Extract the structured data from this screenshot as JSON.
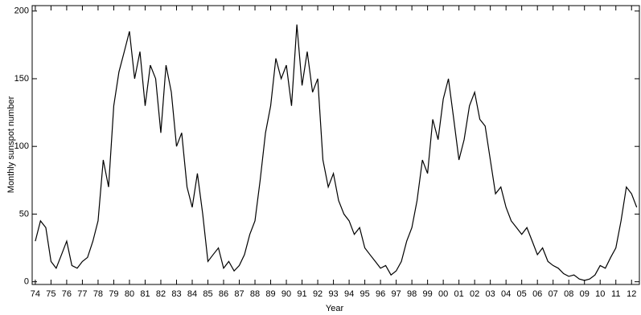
{
  "chart_data": {
    "type": "line",
    "x_label": "Year",
    "y_label": "Monthly sunspot number",
    "x": [
      1974.0,
      1974.33,
      1974.67,
      1975.0,
      1975.33,
      1975.67,
      1976.0,
      1976.33,
      1976.67,
      1977.0,
      1977.33,
      1977.67,
      1978.0,
      1978.33,
      1978.67,
      1979.0,
      1979.33,
      1979.67,
      1980.0,
      1980.33,
      1980.67,
      1981.0,
      1981.33,
      1981.67,
      1982.0,
      1982.33,
      1982.67,
      1983.0,
      1983.33,
      1983.67,
      1984.0,
      1984.33,
      1984.67,
      1985.0,
      1985.33,
      1985.67,
      1986.0,
      1986.33,
      1986.67,
      1987.0,
      1987.33,
      1987.67,
      1988.0,
      1988.33,
      1988.67,
      1989.0,
      1989.33,
      1989.67,
      1990.0,
      1990.33,
      1990.67,
      1991.0,
      1991.33,
      1991.67,
      1992.0,
      1992.33,
      1992.67,
      1993.0,
      1993.33,
      1993.67,
      1994.0,
      1994.33,
      1994.67,
      1995.0,
      1995.33,
      1995.67,
      1996.0,
      1996.33,
      1996.67,
      1997.0,
      1997.33,
      1997.67,
      1998.0,
      1998.33,
      1998.67,
      1999.0,
      1999.33,
      1999.67,
      2000.0,
      2000.33,
      2000.67,
      2001.0,
      2001.33,
      2001.67,
      2002.0,
      2002.33,
      2002.67,
      2003.0,
      2003.33,
      2003.67,
      2004.0,
      2004.33,
      2004.67,
      2005.0,
      2005.33,
      2005.67,
      2006.0,
      2006.33,
      2006.67,
      2007.0,
      2007.33,
      2007.67,
      2008.0,
      2008.33,
      2008.67,
      2009.0,
      2009.33,
      2009.67,
      2010.0,
      2010.33,
      2010.67,
      2011.0,
      2011.33,
      2011.67,
      2012.0,
      2012.33
    ],
    "series": [
      {
        "color": "#000000",
        "values": [
          30,
          45,
          40,
          15,
          10,
          20,
          30,
          12,
          10,
          15,
          18,
          30,
          45,
          90,
          70,
          130,
          155,
          170,
          185,
          150,
          170,
          130,
          160,
          150,
          110,
          160,
          140,
          100,
          110,
          70,
          55,
          80,
          50,
          15,
          20,
          25,
          10,
          15,
          8,
          12,
          20,
          35,
          45,
          75,
          110,
          130,
          165,
          150,
          160,
          130,
          190,
          145,
          170,
          140,
          150,
          90,
          70,
          80,
          60,
          50,
          45,
          35,
          40,
          25,
          20,
          15,
          10,
          12,
          5,
          8,
          15,
          30,
          40,
          60,
          90,
          80,
          120,
          105,
          135,
          150,
          120,
          90,
          105,
          130,
          140,
          120,
          115,
          90,
          65,
          70,
          55,
          45,
          40,
          35,
          40,
          30,
          20,
          25,
          15,
          12,
          10,
          6,
          4,
          5,
          2,
          1,
          2,
          5,
          12,
          10,
          18,
          25,
          45,
          70,
          65,
          55
        ]
      }
    ],
    "xlim": [
      1973.8,
      2012.5
    ],
    "ylim": [
      -2,
      204
    ],
    "yticks": [
      0,
      50,
      100,
      150,
      200
    ],
    "xticks": [
      {
        "value": 1974,
        "label": "74"
      },
      {
        "value": 1975,
        "label": "75"
      },
      {
        "value": 1976,
        "label": "76"
      },
      {
        "value": 1977,
        "label": "77"
      },
      {
        "value": 1978,
        "label": "78"
      },
      {
        "value": 1979,
        "label": "79"
      },
      {
        "value": 1980,
        "label": "80"
      },
      {
        "value": 1981,
        "label": "81"
      },
      {
        "value": 1982,
        "label": "82"
      },
      {
        "value": 1983,
        "label": "83"
      },
      {
        "value": 1984,
        "label": "84"
      },
      {
        "value": 1985,
        "label": "85"
      },
      {
        "value": 1986,
        "label": "86"
      },
      {
        "value": 1987,
        "label": "87"
      },
      {
        "value": 1988,
        "label": "88"
      },
      {
        "value": 1989,
        "label": "89"
      },
      {
        "value": 1990,
        "label": "90"
      },
      {
        "value": 1991,
        "label": "91"
      },
      {
        "value": 1992,
        "label": "92"
      },
      {
        "value": 1993,
        "label": "93"
      },
      {
        "value": 1994,
        "label": "94"
      },
      {
        "value": 1995,
        "label": "95"
      },
      {
        "value": 1996,
        "label": "96"
      },
      {
        "value": 1997,
        "label": "97"
      },
      {
        "value": 1998,
        "label": "98"
      },
      {
        "value": 1999,
        "label": "99"
      },
      {
        "value": 2000,
        "label": "00"
      },
      {
        "value": 2001,
        "label": "01"
      },
      {
        "value": 2002,
        "label": "02"
      },
      {
        "value": 2003,
        "label": "03"
      },
      {
        "value": 2004,
        "label": "04"
      },
      {
        "value": 2005,
        "label": "05"
      },
      {
        "value": 2006,
        "label": "06"
      },
      {
        "value": 2007,
        "label": "07"
      },
      {
        "value": 2008,
        "label": "08"
      },
      {
        "value": 2009,
        "label": "09"
      },
      {
        "value": 2010,
        "label": "10"
      },
      {
        "value": 2011,
        "label": "11"
      },
      {
        "value": 2012,
        "label": "12"
      }
    ]
  }
}
